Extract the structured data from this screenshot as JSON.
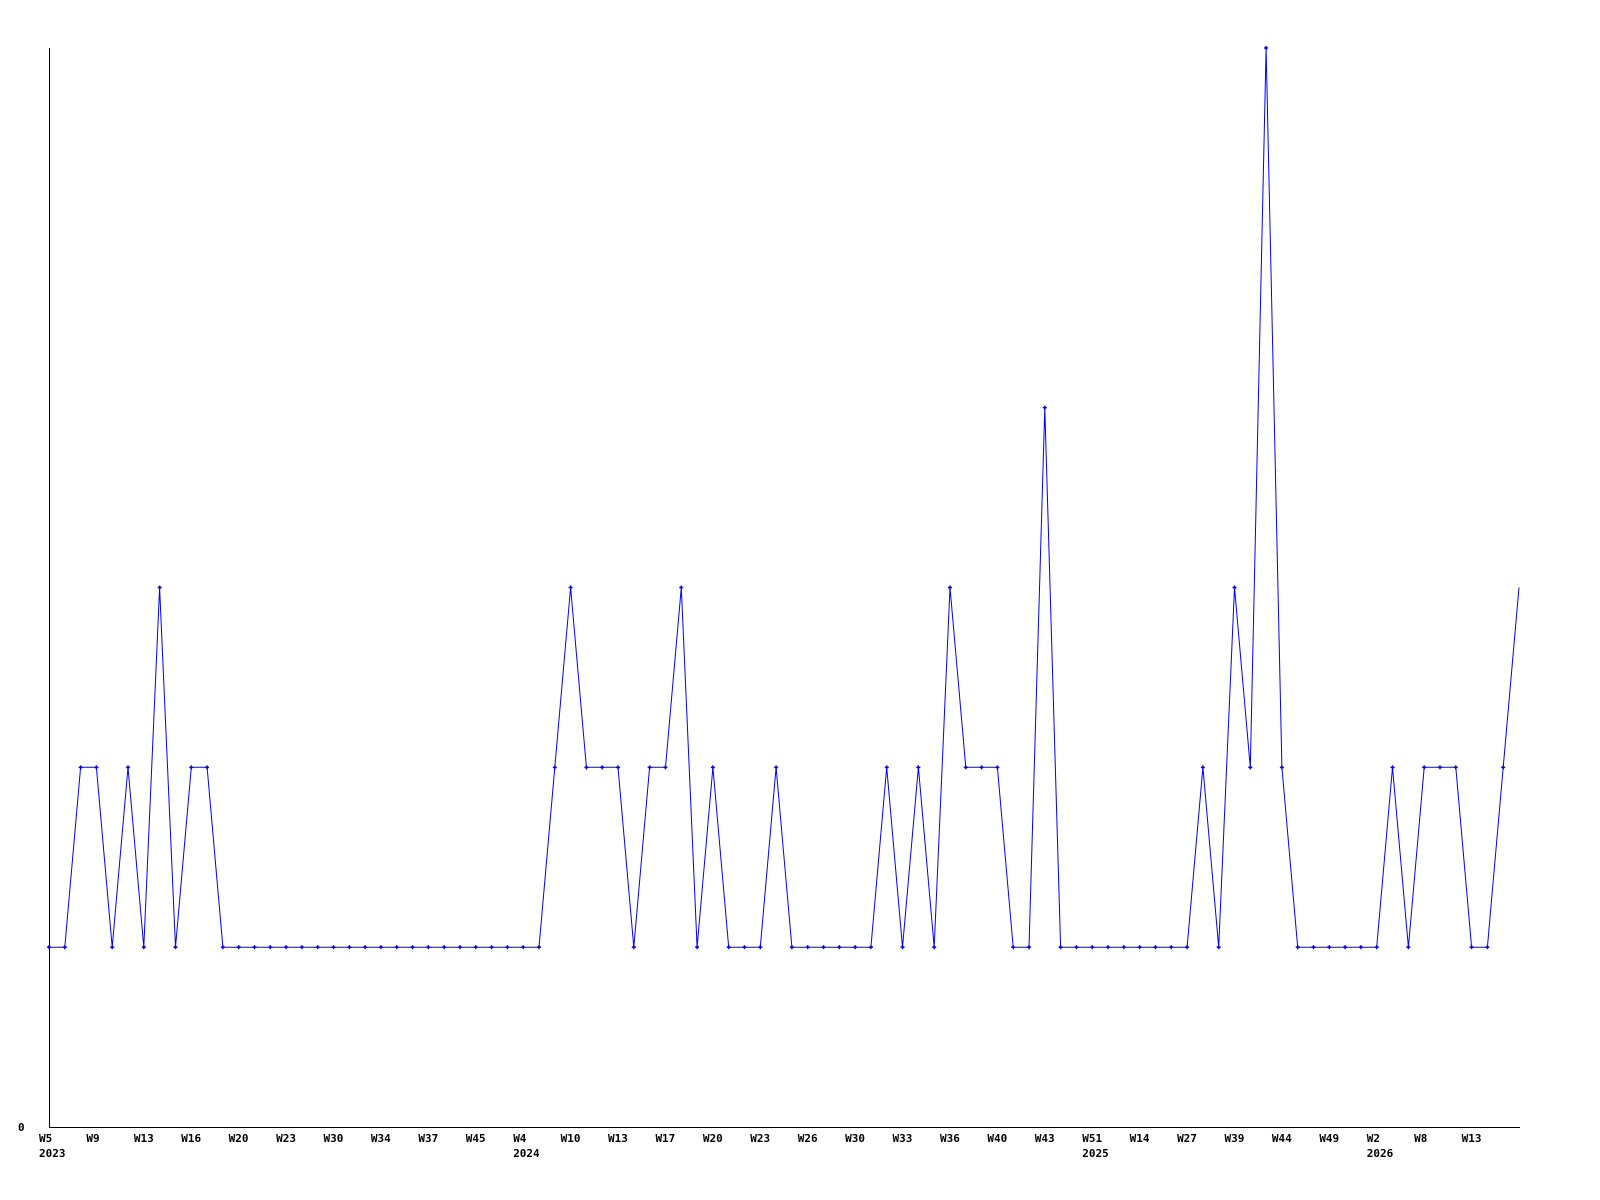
{
  "chart_data": {
    "type": "line",
    "title": "",
    "xlabel": "",
    "ylabel": "",
    "ylim": [
      0,
      6
    ],
    "y_tick_labels": [
      "0"
    ],
    "grid": false,
    "line_color": "#0000ff",
    "axis_color": "#000000",
    "x_tick_labels": [
      "W5",
      "W9",
      "W13",
      "W16",
      "W20",
      "W23",
      "W30",
      "W34",
      "W37",
      "W45",
      "W4",
      "W10",
      "W13",
      "W17",
      "W20",
      "W23",
      "W26",
      "W30",
      "W33",
      "W36",
      "W40",
      "W43",
      "W51",
      "W14",
      "W27",
      "W39",
      "W44",
      "W49",
      "W2",
      "W8",
      "W13"
    ],
    "x_tick_every": 3,
    "year_labels": [
      {
        "point_index": 0,
        "label": "2023"
      },
      {
        "point_index": 30,
        "label": "2024"
      },
      {
        "point_index": 66,
        "label": "2025"
      },
      {
        "point_index": 84,
        "label": "2026"
      }
    ],
    "values": [
      1,
      1,
      2,
      2,
      1,
      2,
      1,
      3,
      1,
      2,
      2,
      1,
      1,
      1,
      1,
      1,
      1,
      1,
      1,
      1,
      1,
      1,
      1,
      1,
      1,
      1,
      1,
      1,
      1,
      1,
      1,
      1,
      2,
      3,
      2,
      2,
      2,
      1,
      2,
      2,
      3,
      1,
      2,
      1,
      1,
      1,
      2,
      1,
      1,
      1,
      1,
      1,
      1,
      2,
      1,
      2,
      1,
      3,
      2,
      2,
      2,
      1,
      1,
      4,
      1,
      1,
      1,
      1,
      1,
      1,
      1,
      1,
      1,
      2,
      1,
      3,
      2,
      6,
      2,
      1,
      1,
      1,
      1,
      1,
      1,
      2,
      1,
      2,
      2,
      2,
      1,
      1,
      2,
      3
    ]
  }
}
